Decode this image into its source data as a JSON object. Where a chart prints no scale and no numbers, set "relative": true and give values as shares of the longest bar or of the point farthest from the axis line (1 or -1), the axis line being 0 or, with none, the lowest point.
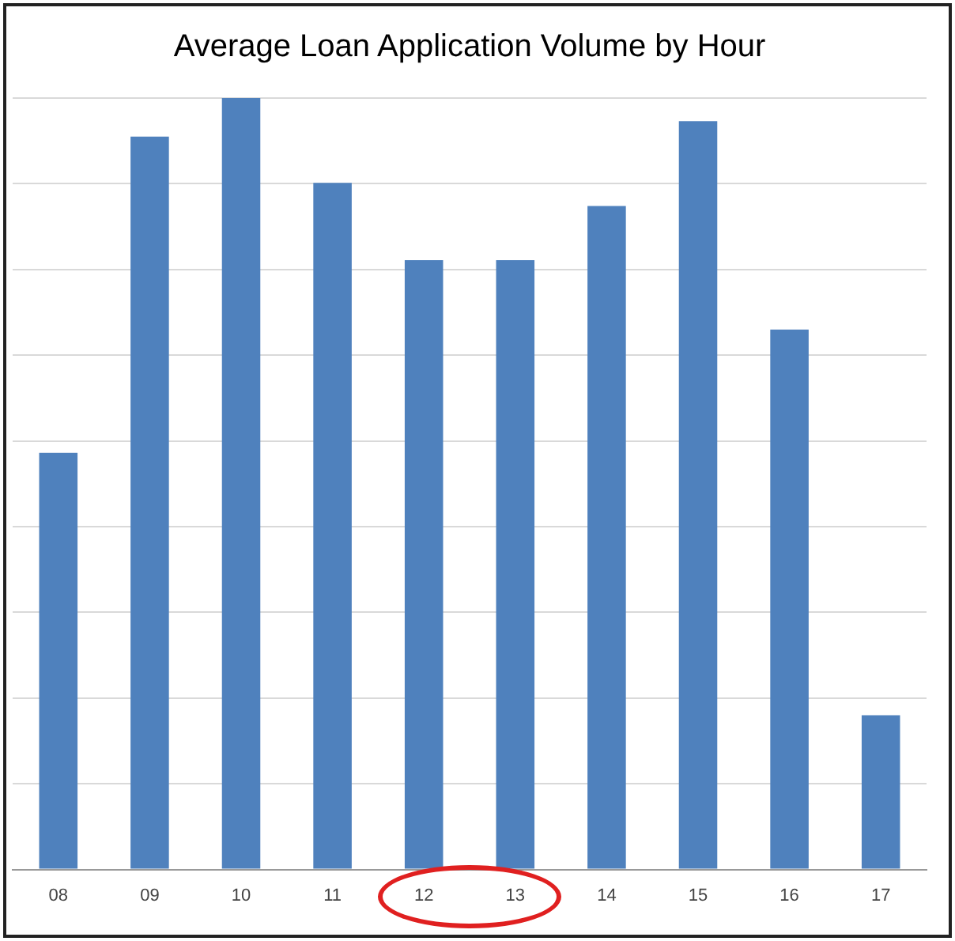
{
  "chart_data": {
    "type": "bar",
    "title": "Average Loan Application Volume by Hour",
    "categories": [
      "08",
      "09",
      "10",
      "11",
      "12",
      "13",
      "14",
      "15",
      "16",
      "17"
    ],
    "values": [
      0.54,
      0.95,
      1,
      0.89,
      0.79,
      0.79,
      0.86,
      0.97,
      0.7,
      0.2
    ],
    "color": "#4f81bd",
    "relative": true,
    "grid": "y"
  }
}
